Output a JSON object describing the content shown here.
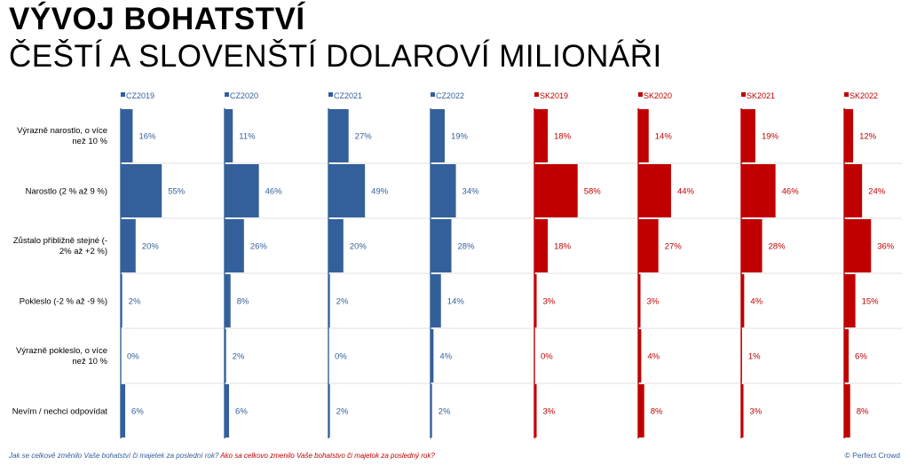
{
  "title": "VÝVOJ BOHATSTVÍ",
  "subtitle": "ČEŠTÍ A SLOVENŠTÍ DOLAROVÍ MILIONÁŘI",
  "footer": {
    "question_cz": "Jak se celkově změnilo Vaše bohatství či majetek za poslední rok?",
    "question_sk": "Ako sa celkovo zmenilo Vaše bohatstvo či majetok za posledný rok?",
    "credit": "© Perfect Crowd"
  },
  "colors": {
    "cz": "#33609a",
    "sk": "#c00000",
    "grid": "#e2e2e2"
  },
  "chart_data": {
    "type": "bar",
    "orientation": "horizontal",
    "layout": "small-multiples",
    "categories": [
      "Výrazně narostlo, o více než 10 %",
      "Narostlo (2 % až 9 %)",
      "Zůstalo přibližně stejné (-2% až +2 %)",
      "Pokleslo (-2 % až -9 %)",
      "Výrazně pokleslo, o více než 10 %",
      "Nevím / nechci odpovídat"
    ],
    "value_suffix": "%",
    "series": [
      {
        "name": "CZ2019",
        "group": "cz",
        "values": [
          16,
          55,
          20,
          2,
          0,
          6
        ]
      },
      {
        "name": "CZ2020",
        "group": "cz",
        "values": [
          11,
          46,
          26,
          8,
          2,
          6
        ]
      },
      {
        "name": "CZ2021",
        "group": "cz",
        "values": [
          27,
          49,
          20,
          2,
          0,
          2
        ]
      },
      {
        "name": "CZ2022",
        "group": "cz",
        "values": [
          19,
          34,
          28,
          14,
          4,
          2
        ]
      },
      {
        "name": "SK2019",
        "group": "sk",
        "values": [
          18,
          58,
          18,
          3,
          0,
          3
        ]
      },
      {
        "name": "SK2020",
        "group": "sk",
        "values": [
          14,
          44,
          27,
          3,
          4,
          8
        ]
      },
      {
        "name": "SK2021",
        "group": "sk",
        "values": [
          19,
          46,
          28,
          4,
          1,
          3
        ]
      },
      {
        "name": "SK2022",
        "group": "sk",
        "values": [
          12,
          24,
          36,
          15,
          6,
          8
        ]
      }
    ],
    "xlim": [
      0,
      100
    ],
    "grid": true
  }
}
